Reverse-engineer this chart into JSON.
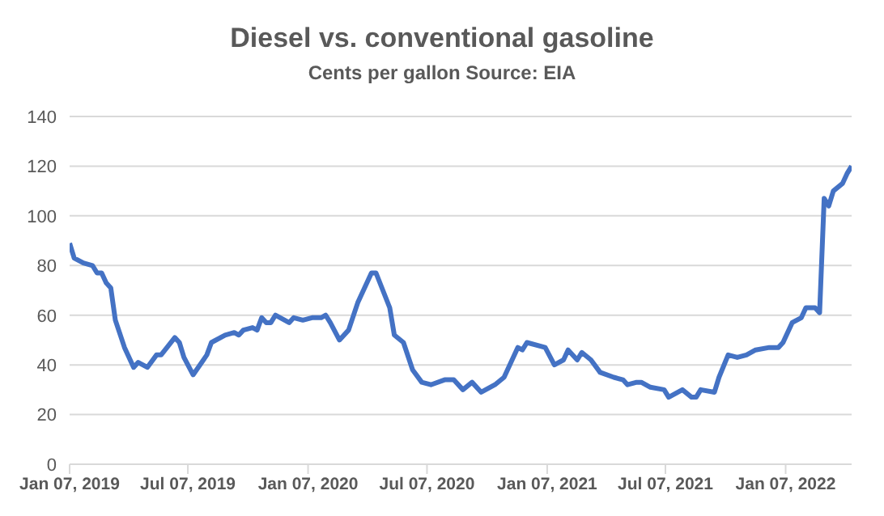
{
  "chart_data": {
    "type": "line",
    "title": "Diesel vs. conventional gasoline",
    "subtitle": "Cents per gallon Source: EIA",
    "x": [
      "2019-01-07",
      "2019-01-14",
      "2019-01-28",
      "2019-02-11",
      "2019-02-18",
      "2019-02-25",
      "2019-03-04",
      "2019-03-11",
      "2019-03-18",
      "2019-04-01",
      "2019-04-15",
      "2019-04-22",
      "2019-05-06",
      "2019-05-20",
      "2019-05-27",
      "2019-06-17",
      "2019-06-24",
      "2019-07-01",
      "2019-07-15",
      "2019-08-05",
      "2019-08-12",
      "2019-09-02",
      "2019-09-16",
      "2019-09-23",
      "2019-09-30",
      "2019-10-14",
      "2019-10-21",
      "2019-10-28",
      "2019-11-04",
      "2019-11-11",
      "2019-11-18",
      "2019-12-09",
      "2019-12-16",
      "2019-12-30",
      "2020-01-13",
      "2020-01-27",
      "2020-02-03",
      "2020-02-10",
      "2020-02-24",
      "2020-03-09",
      "2020-03-23",
      "2020-04-13",
      "2020-04-20",
      "2020-05-11",
      "2020-05-18",
      "2020-06-01",
      "2020-06-15",
      "2020-06-29",
      "2020-07-13",
      "2020-08-03",
      "2020-08-17",
      "2020-08-31",
      "2020-09-14",
      "2020-09-28",
      "2020-10-19",
      "2020-11-02",
      "2020-11-23",
      "2020-11-30",
      "2020-12-07",
      "2021-01-04",
      "2021-01-18",
      "2021-02-01",
      "2021-02-08",
      "2021-02-22",
      "2021-03-01",
      "2021-03-15",
      "2021-03-29",
      "2021-04-19",
      "2021-05-03",
      "2021-05-10",
      "2021-05-24",
      "2021-05-31",
      "2021-06-14",
      "2021-07-05",
      "2021-07-12",
      "2021-08-02",
      "2021-08-16",
      "2021-08-23",
      "2021-08-30",
      "2021-09-20",
      "2021-09-27",
      "2021-10-11",
      "2021-10-25",
      "2021-11-08",
      "2021-11-22",
      "2021-12-13",
      "2021-12-27",
      "2022-01-03",
      "2022-01-17",
      "2022-01-31",
      "2022-02-07",
      "2022-02-21",
      "2022-02-28",
      "2022-03-07",
      "2022-03-14",
      "2022-03-21",
      "2022-04-04",
      "2022-04-11",
      "2022-04-18"
    ],
    "series": [
      {
        "color": "#4472c4",
        "values": [
          89,
          83,
          81,
          80,
          77,
          77,
          73,
          71,
          58,
          47,
          39,
          41,
          39,
          44,
          44,
          51,
          49,
          43,
          36,
          44,
          49,
          52,
          53,
          52,
          54,
          55,
          54,
          59,
          57,
          57,
          60,
          57,
          59,
          58,
          59,
          59,
          60,
          57,
          50,
          54,
          65,
          77,
          77,
          63,
          52,
          49,
          38,
          33,
          32,
          34,
          34,
          30,
          33,
          29,
          32,
          35,
          47,
          46,
          49,
          47,
          40,
          42,
          46,
          42,
          45,
          42,
          37,
          35,
          34,
          32,
          33,
          33,
          31,
          30,
          27,
          30,
          27,
          27,
          30,
          29,
          35,
          44,
          43,
          44,
          46,
          47,
          47,
          49,
          57,
          59,
          63,
          63,
          61,
          107,
          104,
          110,
          113,
          117,
          120
        ]
      }
    ],
    "xlim": [
      "2019-01-07",
      "2022-04-18"
    ],
    "xticks": [
      {
        "value": "2019-01-07",
        "label": "Jan 07, 2019"
      },
      {
        "value": "2019-07-07",
        "label": "Jul 07, 2019"
      },
      {
        "value": "2020-01-07",
        "label": "Jan 07, 2020"
      },
      {
        "value": "2020-07-07",
        "label": "Jul 07, 2020"
      },
      {
        "value": "2021-01-07",
        "label": "Jan 07, 2021"
      },
      {
        "value": "2021-07-07",
        "label": "Jul 07, 2021"
      },
      {
        "value": "2022-01-07",
        "label": "Jan 07, 2022"
      }
    ],
    "ylim": [
      0,
      140
    ],
    "yticks": [
      0,
      20,
      40,
      60,
      80,
      100,
      120,
      140
    ],
    "grid": "y",
    "legend": false,
    "marker": "none",
    "line_style": "solid"
  }
}
